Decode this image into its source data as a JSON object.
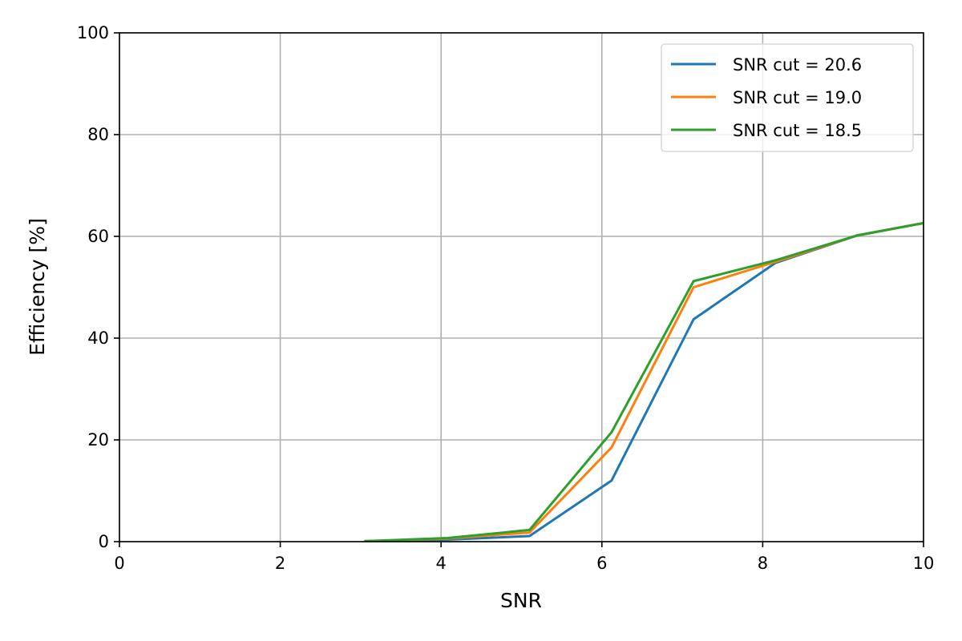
{
  "chart_data": {
    "type": "line",
    "title": "",
    "xlabel": "SNR",
    "ylabel": "Efficiency [%]",
    "xlim": [
      0,
      10
    ],
    "ylim": [
      0,
      100
    ],
    "x_ticks": [
      0,
      2,
      4,
      6,
      8,
      10
    ],
    "y_ticks": [
      0,
      20,
      40,
      60,
      80,
      100
    ],
    "grid": true,
    "legend_position": "top-right",
    "x": [
      3.06,
      4.08,
      5.1,
      6.12,
      7.14,
      8.16,
      9.18,
      10.2
    ],
    "series": [
      {
        "name": "SNR cut = 20.6",
        "color": "#1f77b4",
        "values": [
          0.1,
          0.4,
          1.1,
          12.0,
          43.7,
          54.8,
          60.2,
          63.2
        ]
      },
      {
        "name": "SNR cut = 19.0",
        "color": "#ff7f0e",
        "values": [
          0.1,
          0.6,
          1.8,
          18.5,
          50.0,
          55.0,
          60.2,
          63.2
        ]
      },
      {
        "name": "SNR cut = 18.5",
        "color": "#2ca02c",
        "values": [
          0.1,
          0.7,
          2.3,
          21.5,
          51.2,
          55.3,
          60.2,
          63.2
        ]
      }
    ]
  }
}
